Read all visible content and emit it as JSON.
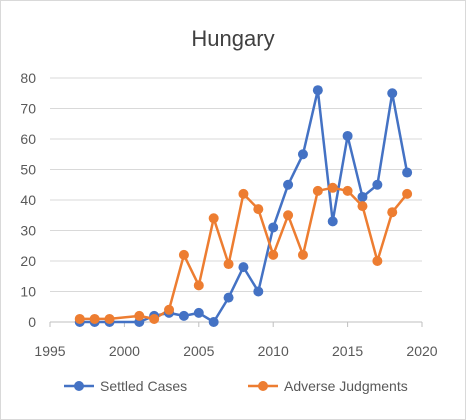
{
  "chart_data": {
    "type": "line",
    "title": "Hungary",
    "xlabel": "",
    "ylabel": "",
    "xlim": [
      1995,
      2020
    ],
    "ylim": [
      0,
      80
    ],
    "x_ticks": [
      1995,
      2000,
      2005,
      2010,
      2015,
      2020
    ],
    "y_ticks": [
      0,
      10,
      20,
      30,
      40,
      50,
      60,
      70,
      80
    ],
    "grid": "horizontal",
    "legend_position": "bottom",
    "series": [
      {
        "name": "Settled Cases",
        "color": "#4472c4",
        "x": [
          1997,
          1998,
          1999,
          2001,
          2002,
          2003,
          2004,
          2005,
          2006,
          2007,
          2008,
          2009,
          2010,
          2011,
          2012,
          2013,
          2014,
          2015,
          2016,
          2017,
          2018,
          2019
        ],
        "values": [
          0,
          0,
          0,
          0,
          2,
          3,
          2,
          3,
          0,
          8,
          18,
          10,
          31,
          45,
          55,
          76,
          33,
          61,
          41,
          45,
          75,
          49
        ]
      },
      {
        "name": "Adverse Judgments",
        "color": "#ed7d31",
        "x": [
          1997,
          1998,
          1999,
          2001,
          2002,
          2003,
          2004,
          2005,
          2006,
          2007,
          2008,
          2009,
          2010,
          2011,
          2012,
          2013,
          2014,
          2015,
          2016,
          2017,
          2018,
          2019
        ],
        "values": [
          1,
          1,
          1,
          2,
          1,
          4,
          22,
          12,
          34,
          19,
          42,
          37,
          22,
          35,
          22,
          43,
          44,
          43,
          38,
          20,
          36,
          42
        ]
      }
    ]
  }
}
